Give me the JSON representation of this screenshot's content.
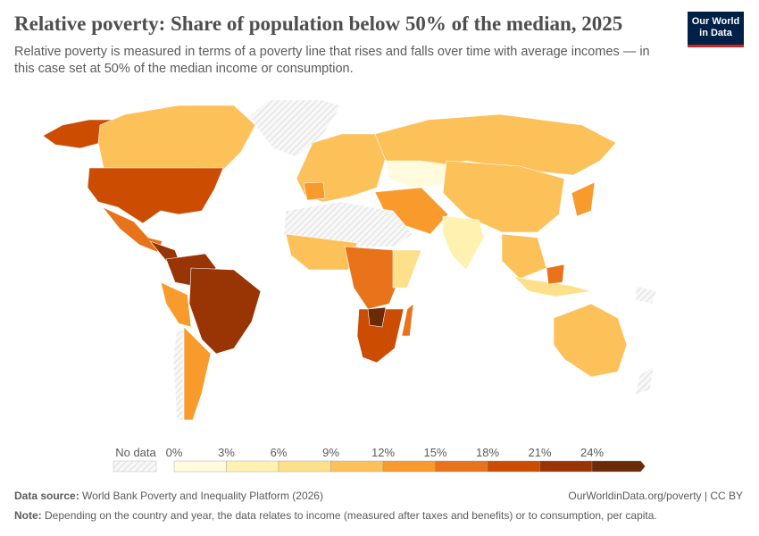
{
  "header": {
    "title": "Relative poverty: Share of population below 50% of the median, 2025",
    "subtitle": "Relative poverty is measured in terms of a poverty line that rises and falls over time with average incomes — in this case set at 50% of the median income or consumption.",
    "logo_text": "Our World in Data"
  },
  "chart_data": {
    "type": "choropleth-map",
    "title": "Relative poverty: Share of population below 50% of the median, 2025",
    "legend": {
      "no_data_label": "No data",
      "no_data_color": "#e6e6e6",
      "tick_labels": [
        "0%",
        "3%",
        "6%",
        "9%",
        "12%",
        "15%",
        "18%",
        "21%",
        "24%"
      ],
      "bins": [
        {
          "from": 0,
          "to": 3,
          "color": "#fffbdc"
        },
        {
          "from": 3,
          "to": 6,
          "color": "#fff2b0"
        },
        {
          "from": 6,
          "to": 9,
          "color": "#fee08a"
        },
        {
          "from": 9,
          "to": 12,
          "color": "#fdc15a"
        },
        {
          "from": 12,
          "to": 15,
          "color": "#f99a2d"
        },
        {
          "from": 15,
          "to": 18,
          "color": "#e8731a"
        },
        {
          "from": 18,
          "to": 21,
          "color": "#cc4c02"
        },
        {
          "from": 21,
          "to": 24,
          "color": "#993404"
        },
        {
          "from": 24,
          "to": null,
          "color": "#6b2a08"
        }
      ]
    }
  },
  "footer": {
    "source_label": "Data source:",
    "source_text": "World Bank Poverty and Inequality Platform (2026)",
    "url_text": "OurWorldinData.org/poverty | CC BY",
    "note_label": "Note:",
    "note_text": "Depending on the country and year, the data relates to income (measured after taxes and benefits) or to consumption, per capita."
  }
}
